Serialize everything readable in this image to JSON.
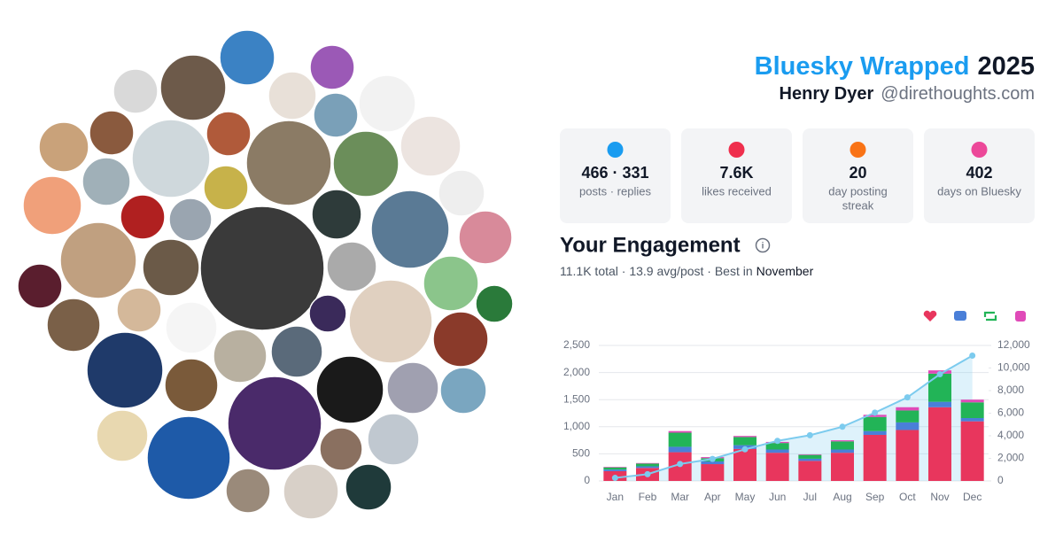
{
  "header": {
    "title": "Bluesky Wrapped",
    "year": "2025",
    "name": "Henry Dyer",
    "handle": "@direthoughts.com"
  },
  "stats": [
    {
      "value": "466 · 331",
      "label": [
        "posts · replies"
      ]
    },
    {
      "value": "7.6K",
      "label": [
        "likes received"
      ]
    },
    {
      "value": "20",
      "label": [
        "day posting",
        "streak"
      ]
    },
    {
      "value": "402",
      "label": [
        "days on Bluesky"
      ]
    }
  ],
  "engagement": {
    "title": "Your Engagement",
    "summary": "11.1K total · 13.9 avg/post · Best in",
    "best_month": "November"
  },
  "chart_data": {
    "type": "bar",
    "categories": [
      "Jan",
      "Feb",
      "Mar",
      "Apr",
      "May",
      "Jun",
      "Jul",
      "Aug",
      "Sep",
      "Oct",
      "Nov",
      "Dec"
    ],
    "series": [
      {
        "color": "#e8365d",
        "values": [
          180,
          240,
          530,
          310,
          590,
          520,
          370,
          520,
          850,
          940,
          1360,
          1100
        ]
      },
      {
        "color": "#4a7fd8",
        "values": [
          30,
          30,
          100,
          50,
          70,
          60,
          40,
          60,
          70,
          140,
          100,
          60
        ]
      },
      {
        "color": "#22b457",
        "values": [
          40,
          50,
          260,
          60,
          150,
          120,
          70,
          150,
          260,
          220,
          520,
          290
        ]
      },
      {
        "color": "#e04ab8",
        "values": [
          10,
          10,
          30,
          20,
          20,
          20,
          10,
          20,
          40,
          60,
          60,
          50
        ]
      },
      {
        "type": "line",
        "axis": "y2",
        "color": "#7ccbee",
        "values": [
          270,
          600,
          1500,
          1950,
          2800,
          3550,
          4050,
          4800,
          6050,
          7400,
          9450,
          11100
        ]
      }
    ],
    "ylim": [
      0,
      2500
    ],
    "yticks": [
      0,
      500,
      {
        "value": 1000,
        "label": "1,000"
      },
      {
        "value": 1500,
        "label": "1,500"
      },
      {
        "value": 2000,
        "label": "2,000"
      },
      {
        "value": 2500,
        "label": "2,500"
      }
    ],
    "y2lim": [
      0,
      12000
    ],
    "y2ticks": [
      0,
      {
        "value": 2000,
        "label": "2,000"
      },
      {
        "value": 4000,
        "label": "4,000"
      },
      {
        "value": 6000,
        "label": "6,000"
      },
      {
        "value": 8000,
        "label": "8,000"
      },
      {
        "value": 10000,
        "label": "10,000"
      },
      {
        "value": 12000,
        "label": "12,000"
      }
    ],
    "grid": true
  }
}
